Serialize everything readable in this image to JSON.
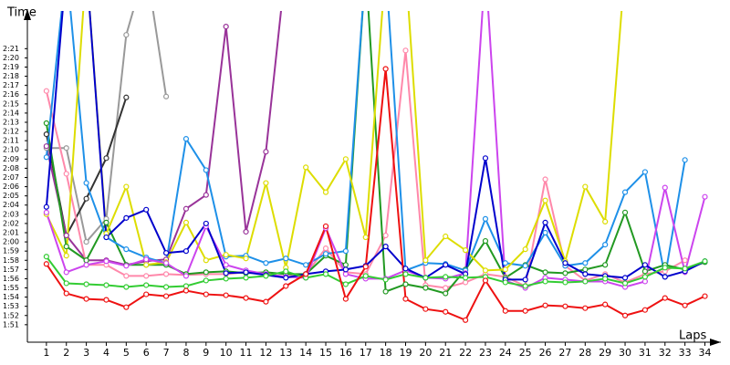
{
  "chart_data": {
    "type": "line",
    "y_label": "Time",
    "x_label": "Laps",
    "x": [
      1,
      2,
      3,
      4,
      5,
      6,
      7,
      8,
      9,
      10,
      11,
      12,
      13,
      14,
      15,
      16,
      17,
      18,
      19,
      20,
      21,
      22,
      23,
      24,
      25,
      26,
      27,
      28,
      29,
      30,
      31,
      32,
      33,
      34
    ],
    "xlim": [
      0,
      34.8
    ],
    "xticks": [
      1,
      2,
      3,
      4,
      5,
      6,
      7,
      8,
      9,
      10,
      11,
      12,
      13,
      14,
      15,
      16,
      17,
      18,
      19,
      20,
      21,
      22,
      23,
      24,
      25,
      26,
      27,
      28,
      29,
      30,
      31,
      32,
      33,
      34
    ],
    "ylim": [
      109.1,
      144.8
    ],
    "yticks": [
      {
        "value": 111,
        "label": "1:51"
      },
      {
        "value": 112,
        "label": "1:52"
      },
      {
        "value": 113,
        "label": "1:53"
      },
      {
        "value": 114,
        "label": "1:54"
      },
      {
        "value": 115,
        "label": "1:55"
      },
      {
        "value": 116,
        "label": "1:56"
      },
      {
        "value": 117,
        "label": "1:57"
      },
      {
        "value": 118,
        "label": "1:58"
      },
      {
        "value": 119,
        "label": "1:59"
      },
      {
        "value": 120,
        "label": "2:00"
      },
      {
        "value": 121,
        "label": "2:01"
      },
      {
        "value": 122,
        "label": "2:02"
      },
      {
        "value": 123,
        "label": "2:03"
      },
      {
        "value": 124,
        "label": "2:04"
      },
      {
        "value": 125,
        "label": "2:05"
      },
      {
        "value": 126,
        "label": "2:06"
      },
      {
        "value": 127,
        "label": "2:07"
      },
      {
        "value": 128,
        "label": "2:08"
      },
      {
        "value": 129,
        "label": "2:09"
      },
      {
        "value": 130,
        "label": "2:10"
      },
      {
        "value": 131,
        "label": "2:11"
      },
      {
        "value": 132,
        "label": "2:12"
      },
      {
        "value": 133,
        "label": "2:13"
      },
      {
        "value": 134,
        "label": "2:14"
      },
      {
        "value": 135,
        "label": "2:15"
      },
      {
        "value": 136,
        "label": "2:16"
      },
      {
        "value": 137,
        "label": "2:17"
      },
      {
        "value": 138,
        "label": "2:18"
      },
      {
        "value": 139,
        "label": "2:19"
      },
      {
        "value": 140,
        "label": "2:20"
      },
      {
        "value": 141,
        "label": "2:21"
      }
    ],
    "grid": false,
    "series": [
      {
        "color": "#999999",
        "values": [
          130.2,
          130.2,
          120.0,
          122.5,
          142.5,
          150,
          135.8,
          null,
          null,
          null,
          null,
          null,
          null,
          null,
          null,
          null,
          null,
          null,
          null,
          null,
          null,
          null,
          null,
          null,
          null,
          null,
          null,
          null,
          null,
          null,
          null,
          null,
          null,
          null
        ]
      },
      {
        "color": "#333333",
        "values": [
          131.7,
          120.7,
          124.7,
          129.1,
          135.7,
          null,
          null,
          null,
          null,
          null,
          null,
          null,
          null,
          null,
          null,
          null,
          null,
          null,
          null,
          null,
          null,
          null,
          null,
          null,
          null,
          null,
          null,
          null,
          null,
          null,
          null,
          null,
          null,
          null
        ]
      },
      {
        "color": "#993399",
        "values": [
          130.4,
          120.7,
          118.0,
          118.0,
          117.5,
          117.9,
          118.1,
          123.6,
          125.1,
          143.4,
          121.1,
          129.8,
          150,
          null,
          null,
          null,
          null,
          null,
          null,
          null,
          null,
          null,
          null,
          null,
          null,
          null,
          null,
          null,
          null,
          null,
          null,
          null,
          null,
          null
        ]
      },
      {
        "color": "#ff88aa",
        "values": [
          136.4,
          127.4,
          117.5,
          117.5,
          116.3,
          116.3,
          116.5,
          116.4,
          116.5,
          116.5,
          116.7,
          116.5,
          116.2,
          116.5,
          119.3,
          116.7,
          116.5,
          120.7,
          140.8,
          115.3,
          115.0,
          115.6,
          116.5,
          116.2,
          115.2,
          126.8,
          117.4,
          115.8,
          116.5,
          115.6,
          116.5,
          116.8,
          118.0,
          null
        ]
      },
      {
        "color": "#229922",
        "values": [
          132.9,
          119.5,
          118.0,
          122.1,
          117.5,
          117.5,
          117.5,
          116.5,
          116.7,
          116.8,
          116.6,
          116.7,
          116.5,
          116.5,
          118.5,
          117.5,
          150,
          114.6,
          115.4,
          115.0,
          114.4,
          117.0,
          120.1,
          116.1,
          117.5,
          116.7,
          116.6,
          117.0,
          117.5,
          123.2,
          116.8,
          117.5,
          117.0,
          117.8
        ]
      },
      {
        "color": "#1e90e8",
        "values": [
          129.2,
          150,
          126.4,
          120.5,
          119.2,
          118.3,
          117.7,
          131.2,
          127.8,
          118.4,
          118.5,
          117.7,
          118.2,
          117.5,
          118.7,
          119.0,
          150,
          150,
          116.9,
          117.7,
          117.6,
          116.9,
          122.5,
          117.7,
          117.4,
          121.0,
          117.4,
          117.7,
          119.7,
          125.4,
          127.6,
          116.2,
          128.9,
          null
        ]
      },
      {
        "color": "#dddd00",
        "values": [
          123.0,
          118.5,
          150,
          120.9,
          126.0,
          117.5,
          117.8,
          122.1,
          118.0,
          118.6,
          118.2,
          126.4,
          117.2,
          128.1,
          125.4,
          129.0,
          120.5,
          150,
          150,
          118.0,
          120.6,
          119.1,
          116.9,
          117.0,
          119.2,
          124.5,
          117.9,
          126.0,
          122.2,
          150,
          null,
          null,
          null,
          null
        ]
      },
      {
        "color": "#cc44ee",
        "values": [
          123.2,
          116.7,
          117.5,
          117.9,
          117.4,
          118.1,
          117.7,
          116.3,
          121.7,
          117.5,
          116.9,
          116.5,
          116.2,
          116.1,
          121.5,
          116.5,
          116.0,
          116.0,
          116.9,
          116.1,
          116.0,
          116.6,
          150,
          115.8,
          115.0,
          116.1,
          115.9,
          115.7,
          115.7,
          115.1,
          115.7,
          125.9,
          116.7,
          124.9
        ]
      },
      {
        "color": "#0000cc",
        "values": [
          123.8,
          150,
          150,
          120.5,
          122.6,
          123.5,
          118.8,
          119.0,
          122.0,
          116.6,
          116.7,
          116.4,
          116.1,
          116.5,
          116.8,
          117.0,
          117.4,
          119.5,
          117.1,
          116.1,
          117.5,
          116.5,
          129.1,
          115.9,
          115.9,
          122.1,
          117.7,
          116.5,
          116.3,
          116.1,
          117.5,
          116.2,
          116.8,
          117.9
        ]
      },
      {
        "color": "#33cc33",
        "values": [
          118.4,
          115.5,
          115.4,
          115.3,
          115.1,
          115.3,
          115.1,
          115.2,
          115.8,
          116.0,
          116.1,
          116.3,
          116.8,
          116.1,
          116.5,
          115.4,
          116.3,
          115.9,
          116.5,
          116.1,
          116.2,
          116.1,
          116.2,
          115.6,
          115.2,
          115.7,
          115.6,
          115.7,
          116.0,
          115.5,
          116.2,
          117.2,
          117.1,
          117.9
        ]
      },
      {
        "color": "#ee1111",
        "values": [
          117.6,
          114.4,
          113.8,
          113.7,
          112.9,
          114.3,
          114.1,
          114.7,
          114.3,
          114.2,
          113.9,
          113.5,
          115.2,
          116.5,
          121.7,
          113.8,
          117.3,
          138.8,
          113.8,
          112.7,
          112.4,
          111.5,
          115.8,
          112.5,
          112.5,
          113.1,
          113.0,
          112.8,
          113.2,
          112.0,
          112.6,
          113.9,
          113.1,
          114.1
        ]
      }
    ]
  }
}
